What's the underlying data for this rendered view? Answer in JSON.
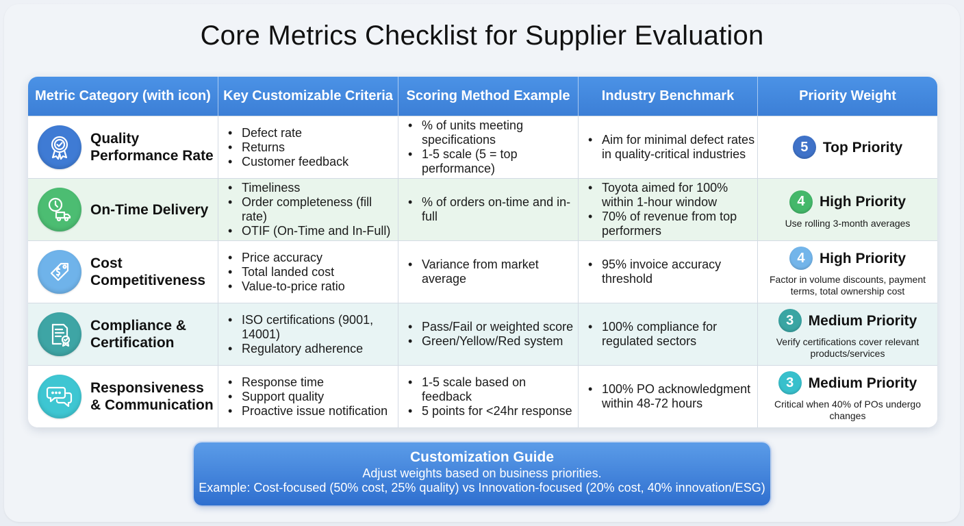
{
  "title": "Core Metrics Checklist for Supplier Evaluation",
  "headers": [
    "Metric Category (with icon)",
    "Key Customizable Criteria",
    "Scoring Method Example",
    "Industry Benchmark",
    "Priority Weight"
  ],
  "rows": [
    {
      "category": "Quality Performance Rate",
      "icon": "quality-badge-icon",
      "icon_color": "#3f7bd4",
      "criteria": [
        "Defect rate",
        "Returns",
        "Customer feedback"
      ],
      "scoring": [
        "% of units meeting specifications",
        "1-5 scale (5 = top performance)"
      ],
      "benchmark": [
        "Aim for minimal defect rates in quality-critical industries"
      ],
      "priority_number": "5",
      "priority_label": "Top Priority",
      "priority_color": "#3f72c8",
      "priority_note": ""
    },
    {
      "category": "On-Time Delivery",
      "icon": "delivery-truck-icon",
      "icon_color": "#4cbd72",
      "criteria": [
        "Timeliness",
        "Order completeness (fill rate)",
        "OTIF (On-Time and In-Full)"
      ],
      "scoring": [
        "% of orders on-time and in-full"
      ],
      "benchmark": [
        "Toyota aimed for 100% within 1-hour window",
        "70% of revenue from top performers"
      ],
      "priority_number": "4",
      "priority_label": "High Priority",
      "priority_color": "#44b86a",
      "priority_note": "Use rolling 3-month averages"
    },
    {
      "category": "Cost Competitiveness",
      "icon": "price-tag-icon",
      "icon_color": "#6fb3ea",
      "criteria": [
        "Price accuracy",
        "Total landed cost",
        "Value-to-price ratio"
      ],
      "scoring": [
        "Variance from market average"
      ],
      "benchmark": [
        "95% invoice accuracy threshold"
      ],
      "priority_number": "4",
      "priority_label": "High Priority",
      "priority_color": "#73b5ea",
      "priority_note": "Factor in volume discounts, payment terms, total ownership cost"
    },
    {
      "category": "Compliance & Certification",
      "icon": "certificate-icon",
      "icon_color": "#3ea5a5",
      "criteria": [
        "ISO certifications (9001, 14001)",
        "Regulatory adherence"
      ],
      "scoring": [
        "Pass/Fail or weighted score",
        "Green/Yellow/Red system"
      ],
      "benchmark": [
        "100% compliance for regulated sectors"
      ],
      "priority_number": "3",
      "priority_label": "Medium Priority",
      "priority_color": "#3aa5a3",
      "priority_note": "Verify certifications cover relevant products/services"
    },
    {
      "category": "Responsiveness & Communication",
      "icon": "chat-bubbles-icon",
      "icon_color": "#3ec6d2",
      "criteria": [
        "Response time",
        "Support quality",
        "Proactive issue notification"
      ],
      "scoring": [
        "1-5 scale based on feedback",
        "5 points for <24hr response"
      ],
      "benchmark": [
        "100% PO acknowledgment within 48-72 hours"
      ],
      "priority_number": "3",
      "priority_label": "Medium Priority",
      "priority_color": "#38c0cc",
      "priority_note": "Critical when 40% of POs undergo changes"
    }
  ],
  "guide": {
    "title": "Customization Guide",
    "lines": [
      "Adjust weights based on business priorities.",
      "Example: Cost-focused (50% cost, 25% quality) vs Innovation-focused (20% cost, 40% innovation/ESG)"
    ]
  }
}
